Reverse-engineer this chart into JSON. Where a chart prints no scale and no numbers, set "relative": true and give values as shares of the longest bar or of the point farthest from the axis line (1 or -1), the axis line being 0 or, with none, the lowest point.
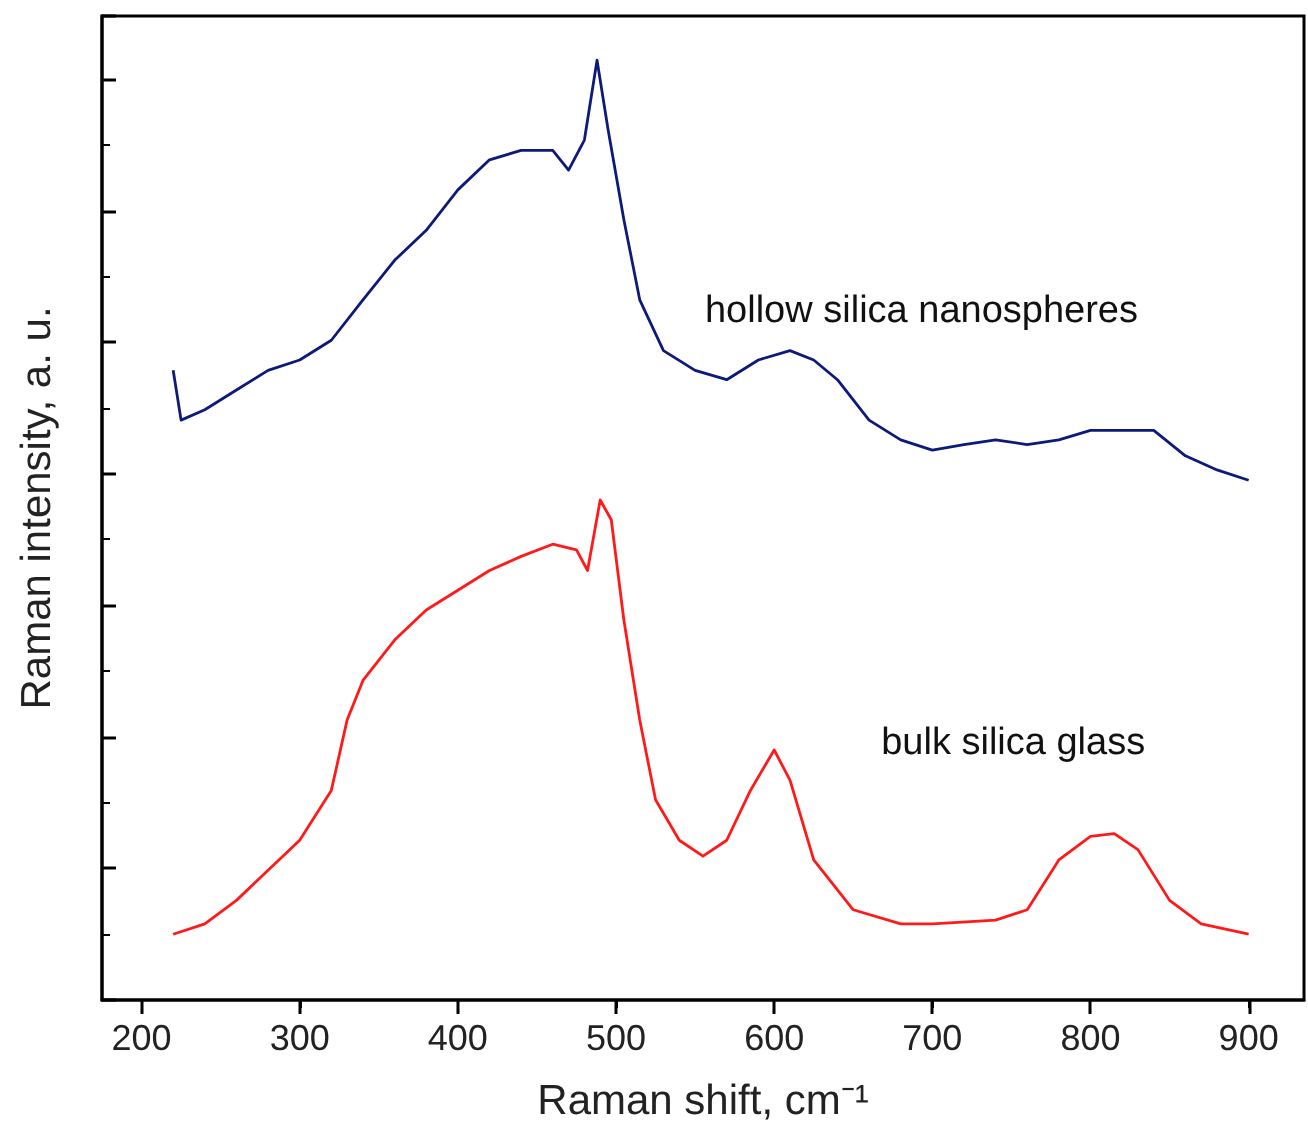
{
  "chart_data": {
    "type": "line",
    "relative": true,
    "xlabel": "Raman shift, cm⁻¹",
    "ylabel": "Raman intensity, a. u.",
    "xlim": [
      175,
      935
    ],
    "xticks": [
      200,
      300,
      400,
      500,
      600,
      700,
      800,
      900
    ],
    "grid": false,
    "legend": false,
    "marker": "none",
    "line_style": "solid",
    "series": [
      {
        "name": "hollow silica nanospheres",
        "color": "#0d1a7a",
        "x": [
          220,
          225,
          240,
          260,
          280,
          300,
          320,
          340,
          360,
          380,
          400,
          420,
          440,
          460,
          470,
          480,
          488,
          495,
          505,
          515,
          530,
          550,
          570,
          590,
          610,
          625,
          640,
          660,
          680,
          700,
          720,
          740,
          760,
          780,
          800,
          820,
          840,
          860,
          880,
          900
        ],
        "values": [
          0.67,
          0.617,
          0.628,
          0.649,
          0.67,
          0.681,
          0.702,
          0.745,
          0.787,
          0.819,
          0.862,
          0.894,
          0.904,
          0.904,
          0.883,
          0.915,
          1,
          0.926,
          0.83,
          0.745,
          0.691,
          0.67,
          0.66,
          0.681,
          0.691,
          0.681,
          0.66,
          0.617,
          0.596,
          0.585,
          0.591,
          0.596,
          0.591,
          0.596,
          0.606,
          0.606,
          0.606,
          0.579,
          0.564,
          0.553
        ]
      },
      {
        "name": "bulk silica glass",
        "color": "#ff1a1a",
        "x": [
          220,
          240,
          260,
          280,
          300,
          320,
          330,
          340,
          360,
          380,
          400,
          420,
          440,
          460,
          475,
          482,
          490,
          497,
          505,
          515,
          525,
          540,
          555,
          570,
          585,
          600,
          610,
          625,
          650,
          680,
          700,
          740,
          760,
          780,
          800,
          815,
          830,
          850,
          870,
          900
        ],
        "values": [
          0.07,
          0.081,
          0.106,
          0.138,
          0.17,
          0.223,
          0.298,
          0.34,
          0.383,
          0.415,
          0.436,
          0.457,
          0.472,
          0.485,
          0.479,
          0.457,
          0.532,
          0.511,
          0.404,
          0.298,
          0.213,
          0.17,
          0.153,
          0.17,
          0.223,
          0.266,
          0.234,
          0.149,
          0.096,
          0.081,
          0.081,
          0.085,
          0.096,
          0.149,
          0.174,
          0.177,
          0.16,
          0.106,
          0.081,
          0.07
        ]
      }
    ]
  }
}
